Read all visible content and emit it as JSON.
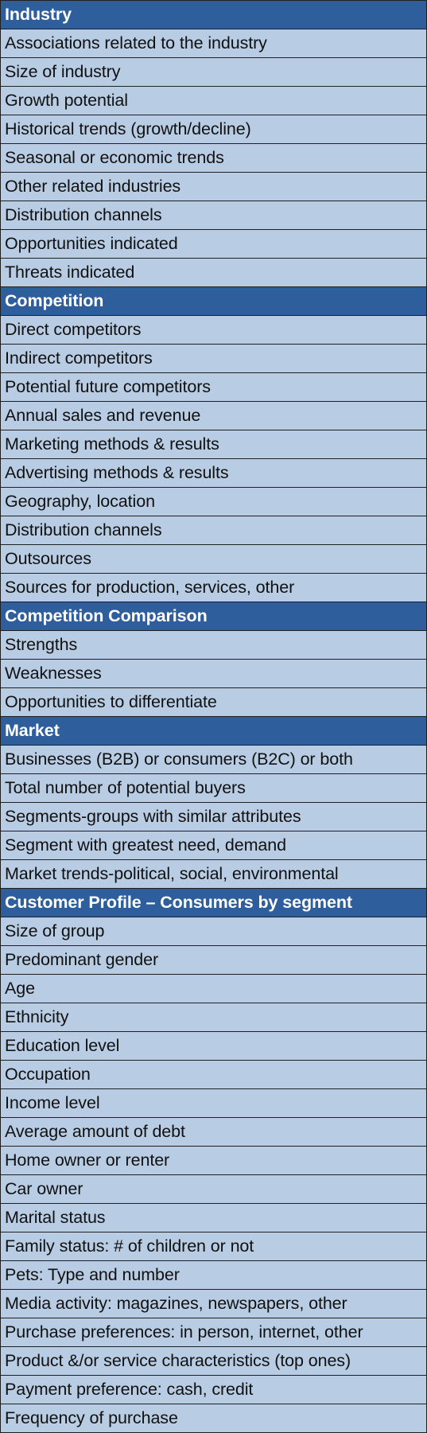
{
  "colors": {
    "header_bg": "#2e5e9c",
    "header_text": "#ffffff",
    "item_bg": "#b8cce4",
    "item_text": "#111111",
    "border": "#1f1f1f"
  },
  "sections": [
    {
      "title": "Industry",
      "items": [
        "Associations related to the industry",
        "Size of industry",
        "Growth potential",
        "Historical trends (growth/decline)",
        "Seasonal or economic trends",
        "Other related industries",
        "Distribution channels",
        "Opportunities indicated",
        "Threats indicated"
      ]
    },
    {
      "title": "Competition",
      "items": [
        "Direct competitors",
        "Indirect competitors",
        "Potential future competitors",
        "Annual sales and revenue",
        "Marketing methods & results",
        "Advertising methods & results",
        "Geography, location",
        "Distribution channels",
        "Outsources",
        "Sources for production, services, other"
      ]
    },
    {
      "title": "Competition Comparison",
      "items": [
        "Strengths",
        "Weaknesses",
        "Opportunities to differentiate"
      ]
    },
    {
      "title": "Market",
      "items": [
        "Businesses (B2B) or consumers (B2C) or both",
        "Total number of potential buyers",
        "Segments-groups with similar attributes",
        "Segment with greatest need, demand",
        "Market trends-political, social, environmental"
      ]
    },
    {
      "title": "Customer Profile – Consumers by segment",
      "items": [
        "Size of group",
        "Predominant gender",
        "Age",
        "Ethnicity",
        "Education level",
        "Occupation",
        "Income level",
        "Average amount of debt",
        "Home owner or renter",
        "Car owner",
        "Marital status",
        "Family status: # of children or not",
        "Pets: Type and number",
        "Media activity: magazines, newspapers, other",
        "Purchase preferences: in person, internet, other",
        "Product &/or service characteristics (top ones)",
        "Payment preference: cash, credit",
        "Frequency of purchase"
      ]
    }
  ]
}
